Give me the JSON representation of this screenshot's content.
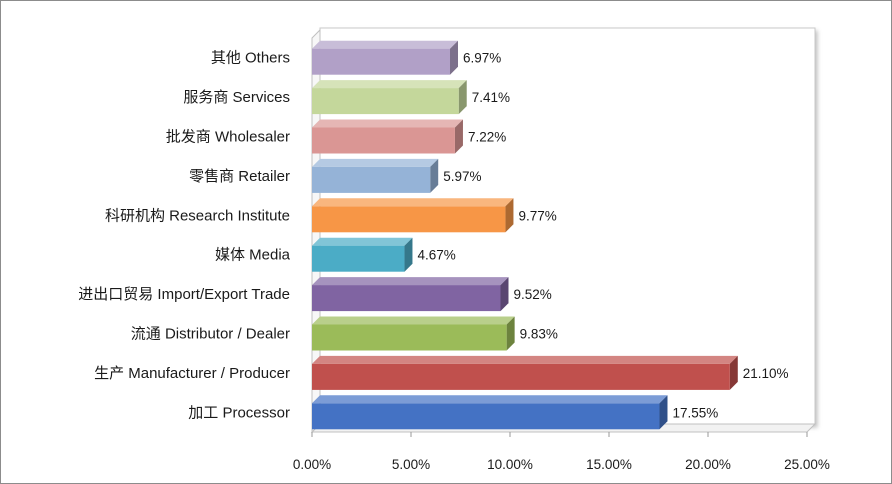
{
  "chart_data": {
    "type": "bar",
    "orientation": "horizontal",
    "categories": [
      "加工 Processor",
      "生产 Manufacturer / Producer",
      "流通 Distributor / Dealer",
      "进出口贸易 Import/Export Trade",
      "媒体 Media",
      "科研机构 Research Institute",
      "零售商 Retailer",
      "批发商 Wholesaler",
      "服务商 Services",
      "其他 Others"
    ],
    "values": [
      17.55,
      21.1,
      9.83,
      9.52,
      4.67,
      9.77,
      5.97,
      7.22,
      7.41,
      6.97
    ],
    "value_labels": [
      "17.55%",
      "21.10%",
      "9.83%",
      "9.52%",
      "4.67%",
      "9.77%",
      "5.97%",
      "7.22%",
      "7.41%",
      "6.97%"
    ],
    "colors": [
      "#4472c4",
      "#c0504d",
      "#9bbb59",
      "#8064a2",
      "#4bacc6",
      "#f79646",
      "#95b3d7",
      "#da9694",
      "#c4d79b",
      "#b1a0c7"
    ],
    "xlim": [
      0,
      25
    ],
    "x_ticks": [
      0,
      5,
      10,
      15,
      20,
      25
    ],
    "x_tick_labels": [
      "0.00%",
      "5.00%",
      "10.00%",
      "15.00%",
      "20.00%",
      "25.00%"
    ],
    "title": "",
    "xlabel": "",
    "ylabel": "",
    "grid": false,
    "legend": "none",
    "style": "3d"
  }
}
